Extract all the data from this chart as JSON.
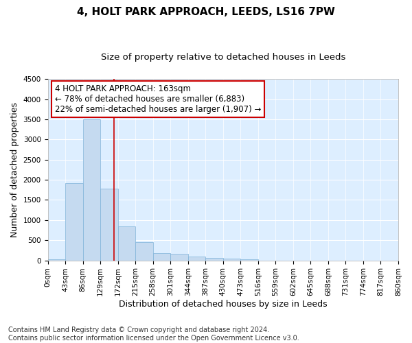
{
  "title_line1": "4, HOLT PARK APPROACH, LEEDS, LS16 7PW",
  "title_line2": "Size of property relative to detached houses in Leeds",
  "xlabel": "Distribution of detached houses by size in Leeds",
  "ylabel": "Number of detached properties",
  "bar_color": "#c5daf0",
  "bar_edge_color": "#7fb3d9",
  "background_color": "#ddeeff",
  "grid_color": "#ffffff",
  "vline_color": "#cc0000",
  "vline_x": 163,
  "bin_edges": [
    0,
    43,
    86,
    129,
    172,
    215,
    258,
    301,
    344,
    387,
    430,
    473,
    516,
    559,
    602,
    645,
    688,
    731,
    774,
    817,
    860
  ],
  "bin_labels": [
    "0sqm",
    "43sqm",
    "86sqm",
    "129sqm",
    "172sqm",
    "215sqm",
    "258sqm",
    "301sqm",
    "344sqm",
    "387sqm",
    "430sqm",
    "473sqm",
    "516sqm",
    "559sqm",
    "602sqm",
    "645sqm",
    "688sqm",
    "731sqm",
    "774sqm",
    "817sqm",
    "860sqm"
  ],
  "counts": [
    30,
    1920,
    3500,
    1780,
    850,
    450,
    175,
    160,
    95,
    65,
    50,
    35,
    0,
    0,
    0,
    0,
    0,
    0,
    0,
    0
  ],
  "ylim": [
    0,
    4500
  ],
  "yticks": [
    0,
    500,
    1000,
    1500,
    2000,
    2500,
    3000,
    3500,
    4000,
    4500
  ],
  "annotation_title": "4 HOLT PARK APPROACH: 163sqm",
  "annotation_line2": "← 78% of detached houses are smaller (6,883)",
  "annotation_line3": "22% of semi-detached houses are larger (1,907) →",
  "annotation_box_color": "#ffffff",
  "annotation_box_edge": "#cc0000",
  "footer_line1": "Contains HM Land Registry data © Crown copyright and database right 2024.",
  "footer_line2": "Contains public sector information licensed under the Open Government Licence v3.0.",
  "title_fontsize": 11,
  "subtitle_fontsize": 9.5,
  "axis_label_fontsize": 9,
  "tick_fontsize": 7.5,
  "annotation_fontsize": 8.5,
  "footer_fontsize": 7
}
